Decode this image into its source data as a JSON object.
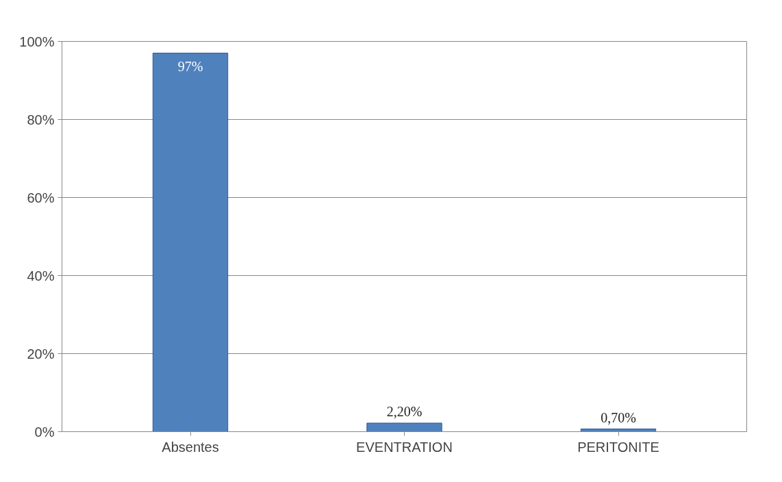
{
  "chart_data": {
    "type": "bar",
    "categories": [
      "Absentes",
      "EVENTRATION",
      "PERITONITE"
    ],
    "values": [
      97,
      2.2,
      0.7
    ],
    "value_labels": [
      "97%",
      "2,20%",
      "0,70%"
    ],
    "color": "#4f81bd",
    "ylim": [
      0,
      100
    ],
    "yticks": [
      {
        "value": 0,
        "label": "0%"
      },
      {
        "value": 20,
        "label": "20%"
      },
      {
        "value": 40,
        "label": "40%"
      },
      {
        "value": 60,
        "label": "60%"
      },
      {
        "value": 80,
        "label": "80%"
      },
      {
        "value": 100,
        "label": "100%"
      }
    ],
    "grid": "y"
  }
}
